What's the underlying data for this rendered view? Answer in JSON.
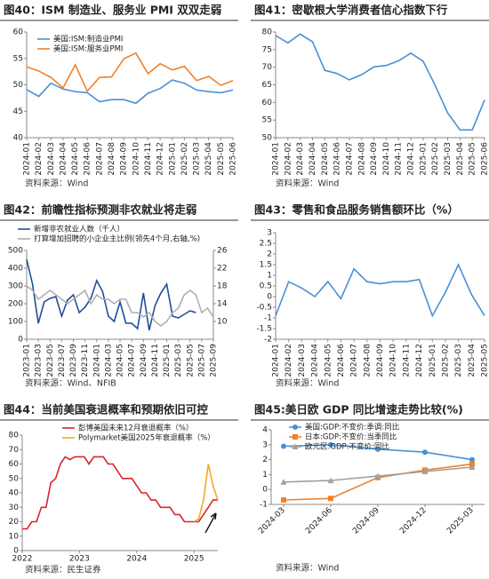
{
  "chart_data": [
    {
      "type": "line",
      "title": "图40：ISM 制造业、服务业 PMI 双双走弱",
      "source": "资料来源：Wind",
      "categories": [
        "2024-01",
        "2024-02",
        "2024-03",
        "2024-04",
        "2024-05",
        "2024-06",
        "2024-07",
        "2024-08",
        "2024-09",
        "2024-10",
        "2024-11",
        "2024-12",
        "2025-01",
        "2025-02",
        "2025-03",
        "2025-04",
        "2025-05",
        "2025-06"
      ],
      "series": [
        {
          "name": "美国:ISM:制造业PMI",
          "color": "#4a8fd6",
          "values": [
            49.1,
            47.8,
            50.3,
            49.2,
            48.7,
            48.5,
            46.8,
            47.2,
            47.2,
            46.5,
            48.4,
            49.3,
            50.9,
            50.3,
            49.0,
            48.7,
            48.5,
            49.0
          ]
        },
        {
          "name": "美国:ISM:服务业PMI",
          "color": "#f0812a",
          "values": [
            53.4,
            52.6,
            51.4,
            49.4,
            53.8,
            48.8,
            51.4,
            51.5,
            54.9,
            56.0,
            52.1,
            54.0,
            52.8,
            53.5,
            50.8,
            51.6,
            49.9,
            50.8
          ]
        }
      ],
      "ylim": [
        40,
        60
      ],
      "yticks": [
        40,
        45,
        50,
        55,
        60
      ]
    },
    {
      "type": "line",
      "title": "图41：密歇根大学消费者信心指数下行",
      "source": "资料来源：Wind",
      "categories": [
        "2024-01",
        "2024-02",
        "2024-03",
        "2024-04",
        "2024-05",
        "2024-06",
        "2024-07",
        "2024-08",
        "2024-09",
        "2024-10",
        "2024-11",
        "2024-12",
        "2025-01",
        "2025-02",
        "2025-03",
        "2025-04",
        "2025-05",
        "2025-06"
      ],
      "series": [
        {
          "color": "#4a8fd6",
          "values": [
            79.0,
            76.9,
            79.4,
            77.2,
            69.1,
            68.2,
            66.4,
            67.9,
            70.1,
            70.5,
            71.8,
            74.0,
            71.7,
            64.7,
            57.0,
            52.2,
            52.2,
            60.7
          ]
        }
      ],
      "ylim": [
        50,
        80
      ],
      "yticks": [
        50,
        55,
        60,
        65,
        70,
        75,
        80
      ]
    },
    {
      "type": "line",
      "title": "图42：前瞻性指标预测非农就业将走弱",
      "source": "资料来源：Wind、NFIB",
      "categories": [
        "2023-01",
        null,
        "2023-03",
        null,
        "2023-05",
        null,
        "2023-07",
        null,
        "2023-09",
        null,
        "2023-11",
        null,
        "2024-01",
        null,
        "2024-03",
        null,
        "2024-05",
        null,
        "2024-07",
        null,
        "2024-09",
        null,
        "2024-11",
        null,
        "2025-01",
        null,
        "2025-03",
        null,
        "2025-05",
        null,
        "2025-07",
        null,
        "2025-09"
      ],
      "series": [
        {
          "name": "新增非农就业人数（千人）",
          "color": "#1f4e9c",
          "values": [
            450,
            310,
            90,
            210,
            230,
            240,
            130,
            220,
            250,
            150,
            180,
            230,
            330,
            270,
            130,
            100,
            210,
            90,
            90,
            60,
            260,
            50,
            190,
            260,
            310,
            130,
            120,
            140,
            160,
            150,
            null,
            null,
            null
          ]
        },
        {
          "name": "打算增加招聘的小企业主比例(领先4个月,右轴,%)",
          "color": "#b0b0b0",
          "axis": "y2",
          "values": [
            18,
            17,
            15,
            16,
            17,
            16,
            15,
            14,
            15,
            16,
            17,
            14,
            16,
            15,
            15,
            14,
            15,
            15,
            12,
            12,
            11,
            12,
            10,
            9,
            10,
            12,
            13,
            16,
            17,
            16,
            12,
            13,
            11
          ]
        }
      ],
      "ylim": [
        0,
        500
      ],
      "yticks": [
        0,
        100,
        200,
        300,
        400,
        500
      ],
      "y2lim": [
        6,
        26
      ],
      "y2ticks": [
        10,
        14,
        18,
        22,
        26
      ]
    },
    {
      "type": "line",
      "title": "图43：零售和食品服务销售额环比（%）",
      "source": "资料来源：Wind",
      "categories": [
        "2024-01",
        "2024-02",
        "2024-03",
        "2024-04",
        "2024-05",
        "2024-06",
        "2024-07",
        "2024-08",
        "2024-09",
        "2024-10",
        "2024-11",
        "2024-12",
        "2025-01",
        "2025-02",
        "2025-03",
        "2025-04",
        "2025-05"
      ],
      "series": [
        {
          "color": "#4a8fd6",
          "values": [
            -0.9,
            0.7,
            0.4,
            0.0,
            0.7,
            -0.1,
            1.3,
            0.7,
            0.6,
            0.7,
            0.7,
            0.8,
            -0.9,
            0.2,
            1.5,
            0.1,
            -0.9
          ]
        }
      ],
      "ylim": [
        -2,
        3
      ],
      "yticks": [
        -2,
        -1.5,
        -1,
        -0.5,
        0,
        0.5,
        1,
        1.5,
        2,
        2.5,
        3
      ]
    },
    {
      "type": "line",
      "title": "图44：当前美国衰退概率和预期依旧可控",
      "source": "资料来源：民生证券",
      "categories": [
        "2022",
        null,
        null,
        null,
        null,
        null,
        null,
        null,
        null,
        null,
        null,
        null,
        "2023",
        null,
        null,
        null,
        null,
        null,
        null,
        null,
        null,
        null,
        null,
        null,
        "2024",
        null,
        null,
        null,
        null,
        null,
        null,
        null,
        null,
        null,
        null,
        null,
        "2025",
        null,
        null,
        null,
        null,
        null
      ],
      "series": [
        {
          "name": "彭博美国未来12月衰退概率（%）",
          "color": "#d9262b",
          "values": [
            15,
            15,
            20,
            20,
            30,
            30,
            47,
            50,
            60,
            65,
            63,
            65,
            65,
            65,
            60,
            65,
            65,
            65,
            60,
            60,
            55,
            50,
            50,
            50,
            45,
            40,
            40,
            35,
            35,
            30,
            30,
            30,
            25,
            25,
            20,
            20,
            20,
            20,
            25,
            30,
            35,
            35
          ]
        },
        {
          "name": "Polymarket美国2025年衰退概率（%）",
          "color": "#f5a623",
          "values": [
            null,
            null,
            null,
            null,
            null,
            null,
            null,
            null,
            null,
            null,
            null,
            null,
            null,
            null,
            null,
            null,
            null,
            null,
            null,
            null,
            null,
            null,
            null,
            null,
            null,
            null,
            null,
            null,
            null,
            null,
            null,
            null,
            null,
            null,
            null,
            null,
            20,
            22,
            35,
            60,
            45,
            35
          ]
        }
      ],
      "ylim": [
        0,
        80
      ],
      "yticks": [
        0,
        10,
        20,
        30,
        40,
        50,
        60,
        70,
        80
      ]
    },
    {
      "type": "line",
      "title": "图45:美日欧 GDP 同比增速走势比较(%)",
      "source": "资料来源：Wind",
      "categories": [
        "2024-03",
        "2024-06",
        "2024-09",
        "2024-12",
        "2025-03"
      ],
      "series": [
        {
          "name": "美国:GDP:不变价:季调:同比",
          "color": "#4a8fd6",
          "values": [
            2.9,
            3.0,
            2.7,
            2.5,
            2.0
          ]
        },
        {
          "name": "日本:GDP:不变价:当季同比",
          "color": "#f0812a",
          "values": [
            -0.7,
            -0.6,
            0.8,
            1.3,
            1.7
          ]
        },
        {
          "name": "欧元区:GDP:不变价:同比",
          "color": "#a0a0a0",
          "values": [
            0.5,
            0.6,
            0.9,
            1.2,
            1.5
          ]
        }
      ],
      "ylim": [
        -1,
        4
      ],
      "yticks": [
        -1,
        0,
        1,
        2,
        3,
        4
      ]
    }
  ]
}
